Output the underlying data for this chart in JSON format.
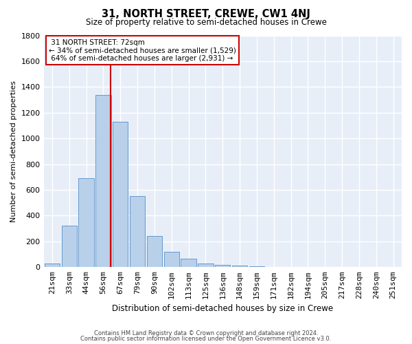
{
  "title": "31, NORTH STREET, CREWE, CW1 4NJ",
  "subtitle": "Size of property relative to semi-detached houses in Crewe",
  "xlabel": "Distribution of semi-detached houses by size in Crewe",
  "ylabel": "Number of semi-detached properties",
  "property_label": "31 NORTH STREET: 72sqm",
  "pct_smaller": 34,
  "pct_larger": 64,
  "count_smaller": 1529,
  "count_larger": 2931,
  "footnote1": "Contains HM Land Registry data © Crown copyright and database right 2024.",
  "footnote2": "Contains public sector information licensed under the Open Government Licence v3.0.",
  "bin_labels": [
    "21sqm",
    "33sqm",
    "44sqm",
    "56sqm",
    "67sqm",
    "79sqm",
    "90sqm",
    "102sqm",
    "113sqm",
    "125sqm",
    "136sqm",
    "148sqm",
    "159sqm",
    "171sqm",
    "182sqm",
    "194sqm",
    "205sqm",
    "217sqm",
    "228sqm",
    "240sqm",
    "251sqm"
  ],
  "bar_heights": [
    30,
    320,
    690,
    1340,
    1130,
    550,
    240,
    120,
    65,
    30,
    20,
    10,
    5,
    3,
    2,
    1,
    0,
    0,
    0,
    0,
    0
  ],
  "bar_color": "#b8d0ea",
  "bar_edge_color": "#6699cc",
  "red_line_color": "#cc0000",
  "annotation_box_color": "#cc0000",
  "background_color": "#e8eef8",
  "grid_color": "#ffffff",
  "ylim": [
    0,
    1800
  ],
  "yticks": [
    0,
    200,
    400,
    600,
    800,
    1000,
    1200,
    1400,
    1600,
    1800
  ],
  "red_line_x": 3.42,
  "figwidth": 6.0,
  "figheight": 5.0,
  "dpi": 100
}
